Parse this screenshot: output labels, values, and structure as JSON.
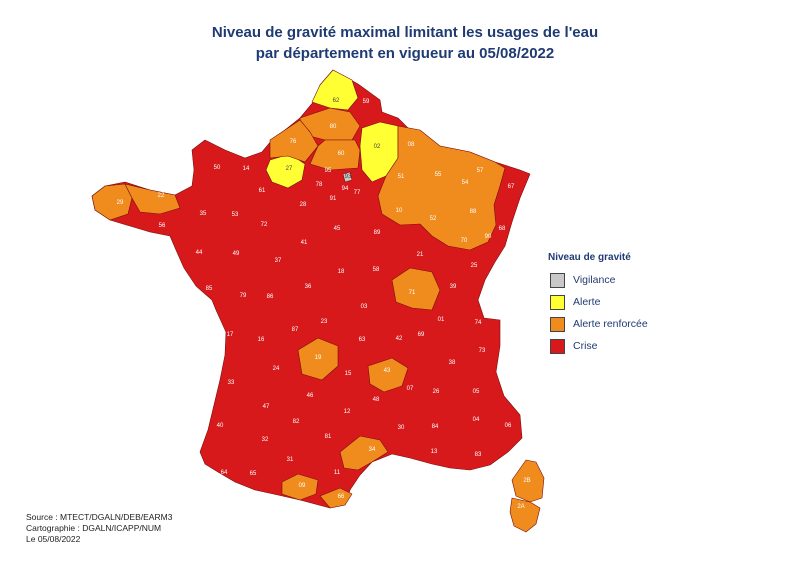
{
  "title": {
    "line1": "Niveau de gravité maximal limitant les usages de l'eau",
    "line2": "par département en vigueur au 05/08/2022"
  },
  "legend": {
    "title": "Niveau de gravité",
    "items": [
      {
        "label": "Vigilance",
        "color": "#c8c8c8"
      },
      {
        "label": "Alerte",
        "color": "#ffff33"
      },
      {
        "label": "Alerte renforcée",
        "color": "#f08c1e"
      },
      {
        "label": "Crise",
        "color": "#d7191c"
      }
    ]
  },
  "credits": {
    "source": "Source : MTECT/DGALN/DEB/EARM3",
    "cartography": "Cartographie : DGALN/ICAPP/NUM",
    "date": "Le 05/08/2022"
  },
  "departments": [
    {
      "code": "62",
      "level": "Alerte"
    },
    {
      "code": "59",
      "level": "Crise"
    },
    {
      "code": "80",
      "level": "Alerte renforcée"
    },
    {
      "code": "02",
      "level": "Alerte"
    },
    {
      "code": "08",
      "level": "Alerte renforcée"
    },
    {
      "code": "76",
      "level": "Alerte renforcée"
    },
    {
      "code": "60",
      "level": "Alerte renforcée"
    },
    {
      "code": "27",
      "level": "Alerte"
    },
    {
      "code": "95",
      "level": "Crise"
    },
    {
      "code": "78",
      "level": "Crise"
    },
    {
      "code": "93",
      "level": "Vigilance"
    },
    {
      "code": "94",
      "level": "Crise"
    },
    {
      "code": "77",
      "level": "Crise"
    },
    {
      "code": "91",
      "level": "Crise"
    },
    {
      "code": "51",
      "level": "Alerte renforcée"
    },
    {
      "code": "55",
      "level": "Alerte renforcée"
    },
    {
      "code": "57",
      "level": "Alerte renforcée"
    },
    {
      "code": "54",
      "level": "Alerte renforcée"
    },
    {
      "code": "67",
      "level": "Crise"
    },
    {
      "code": "50",
      "level": "Crise"
    },
    {
      "code": "14",
      "level": "Crise"
    },
    {
      "code": "61",
      "level": "Crise"
    },
    {
      "code": "29",
      "level": "Alerte renforcée"
    },
    {
      "code": "22",
      "level": "Alerte renforcée"
    },
    {
      "code": "35",
      "level": "Crise"
    },
    {
      "code": "53",
      "level": "Crise"
    },
    {
      "code": "72",
      "level": "Crise"
    },
    {
      "code": "28",
      "level": "Crise"
    },
    {
      "code": "45",
      "level": "Crise"
    },
    {
      "code": "89",
      "level": "Crise"
    },
    {
      "code": "10",
      "level": "Alerte renforcée"
    },
    {
      "code": "52",
      "level": "Alerte renforcée"
    },
    {
      "code": "88",
      "level": "Alerte renforcée"
    },
    {
      "code": "70",
      "level": "Alerte renforcée"
    },
    {
      "code": "90",
      "level": "Alerte renforcée"
    },
    {
      "code": "68",
      "level": "Crise"
    },
    {
      "code": "56",
      "level": "Crise"
    },
    {
      "code": "44",
      "level": "Crise"
    },
    {
      "code": "49",
      "level": "Crise"
    },
    {
      "code": "37",
      "level": "Crise"
    },
    {
      "code": "41",
      "level": "Crise"
    },
    {
      "code": "18",
      "level": "Crise"
    },
    {
      "code": "58",
      "level": "Crise"
    },
    {
      "code": "21",
      "level": "Crise"
    },
    {
      "code": "25",
      "level": "Crise"
    },
    {
      "code": "39",
      "level": "Crise"
    },
    {
      "code": "71",
      "level": "Alerte renforcée"
    },
    {
      "code": "85",
      "level": "Crise"
    },
    {
      "code": "79",
      "level": "Crise"
    },
    {
      "code": "86",
      "level": "Crise"
    },
    {
      "code": "36",
      "level": "Crise"
    },
    {
      "code": "03",
      "level": "Crise"
    },
    {
      "code": "01",
      "level": "Crise"
    },
    {
      "code": "74",
      "level": "Crise"
    },
    {
      "code": "17",
      "level": "Crise"
    },
    {
      "code": "16",
      "level": "Crise"
    },
    {
      "code": "87",
      "level": "Crise"
    },
    {
      "code": "23",
      "level": "Crise"
    },
    {
      "code": "63",
      "level": "Crise"
    },
    {
      "code": "42",
      "level": "Crise"
    },
    {
      "code": "69",
      "level": "Crise"
    },
    {
      "code": "73",
      "level": "Crise"
    },
    {
      "code": "38",
      "level": "Crise"
    },
    {
      "code": "19",
      "level": "Alerte renforcée"
    },
    {
      "code": "43",
      "level": "Alerte renforcée"
    },
    {
      "code": "33",
      "level": "Crise"
    },
    {
      "code": "24",
      "level": "Crise"
    },
    {
      "code": "46",
      "level": "Crise"
    },
    {
      "code": "15",
      "level": "Crise"
    },
    {
      "code": "07",
      "level": "Crise"
    },
    {
      "code": "26",
      "level": "Crise"
    },
    {
      "code": "05",
      "level": "Crise"
    },
    {
      "code": "47",
      "level": "Crise"
    },
    {
      "code": "82",
      "level": "Crise"
    },
    {
      "code": "12",
      "level": "Crise"
    },
    {
      "code": "48",
      "level": "Crise"
    },
    {
      "code": "84",
      "level": "Crise"
    },
    {
      "code": "04",
      "level": "Crise"
    },
    {
      "code": "06",
      "level": "Crise"
    },
    {
      "code": "40",
      "level": "Crise"
    },
    {
      "code": "32",
      "level": "Crise"
    },
    {
      "code": "81",
      "level": "Crise"
    },
    {
      "code": "30",
      "level": "Crise"
    },
    {
      "code": "13",
      "level": "Crise"
    },
    {
      "code": "83",
      "level": "Crise"
    },
    {
      "code": "34",
      "level": "Alerte renforcée"
    },
    {
      "code": "64",
      "level": "Crise"
    },
    {
      "code": "65",
      "level": "Crise"
    },
    {
      "code": "31",
      "level": "Crise"
    },
    {
      "code": "11",
      "level": "Crise"
    },
    {
      "code": "09",
      "level": "Alerte renforcée"
    },
    {
      "code": "66",
      "level": "Alerte renforcée"
    },
    {
      "code": "2B",
      "level": "Alerte renforcée"
    },
    {
      "code": "2A",
      "level": "Alerte renforcée"
    }
  ]
}
